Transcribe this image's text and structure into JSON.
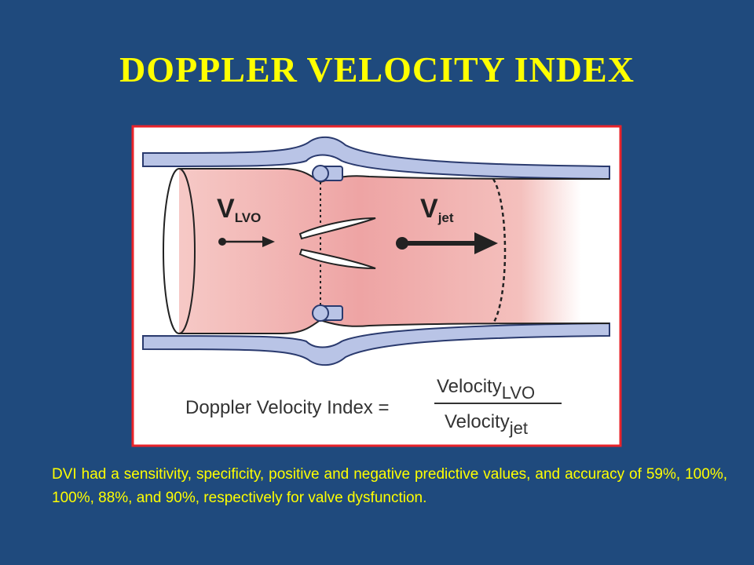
{
  "header": {
    "title": "DOPPLER VELOCITY INDEX"
  },
  "diagram": {
    "inflow_label": {
      "symbol": "V",
      "subscript": "LVO"
    },
    "jet_label": {
      "symbol": "V",
      "subscript": "jet"
    },
    "formula": {
      "lhs": "Doppler Velocity Index =",
      "numerator": {
        "text": "Velocity",
        "subscript": "LVO"
      },
      "denominator": {
        "text": "Velocity",
        "subscript": "jet"
      }
    }
  },
  "body": {
    "text": "DVI had a sensitivity, specificity, positive and negative predictive values, and accuracy of 59%, 100%, 100%, 88%, and 90%, respectively for valve dysfunction."
  }
}
